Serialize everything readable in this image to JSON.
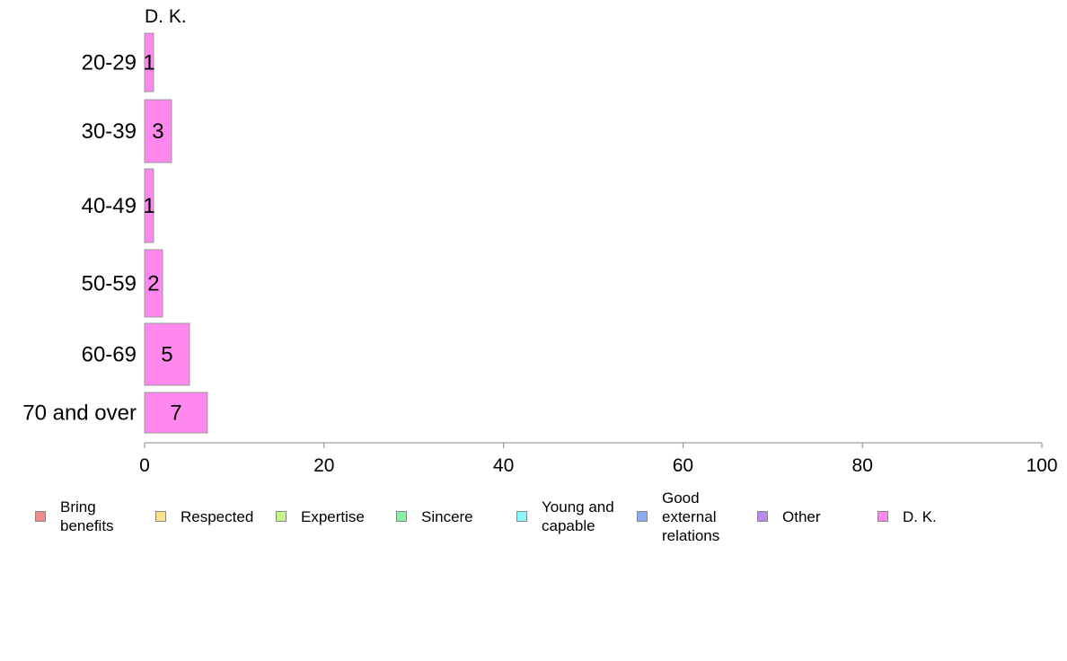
{
  "chart_data": {
    "type": "bar",
    "orientation": "horizontal",
    "title": "D. K.",
    "categories": [
      "20-29",
      "30-39",
      "40-49",
      "50-59",
      "60-69",
      "70 and over"
    ],
    "series": [
      {
        "name": "D. K.",
        "values": [
          1,
          3,
          1,
          2,
          5,
          7
        ]
      }
    ],
    "value_labels": [
      "1",
      "3",
      "1",
      "2",
      "5",
      "7"
    ],
    "xlim": [
      0,
      100
    ],
    "xticks": [
      "0",
      "20",
      "40",
      "60",
      "80",
      "100"
    ],
    "grid": false,
    "bar_color": "#ff88ee",
    "bar_border": "#999999",
    "legend": {
      "placement": "bottom",
      "items": [
        {
          "label": "Bring\nbenefits",
          "color": "#f08a8a"
        },
        {
          "label": "Respected",
          "color": "#ffe08a"
        },
        {
          "label": "Expertise",
          "color": "#c8f58a"
        },
        {
          "label": "Sincere",
          "color": "#8af0a8"
        },
        {
          "label": "Young and\ncapable",
          "color": "#8af8f8"
        },
        {
          "label": "Good\nexternal\nrelations",
          "color": "#8aaaf0"
        },
        {
          "label": "Other",
          "color": "#b88af0"
        },
        {
          "label": "D. K.",
          "color": "#ff88ee"
        }
      ]
    }
  }
}
